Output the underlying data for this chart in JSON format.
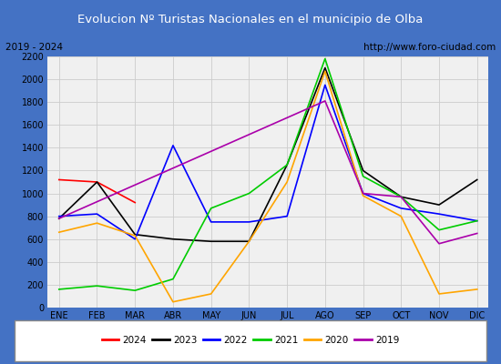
{
  "title": "Evolucion Nº Turistas Nacionales en el municipio de Olba",
  "subtitle_left": "2019 - 2024",
  "subtitle_right": "http://www.foro-ciudad.com",
  "title_bg_color": "#4472c4",
  "title_text_color": "#ffffff",
  "subtitle_bg_color": "#f0f0f0",
  "subtitle_text_color": "#000000",
  "plot_bg_color": "#f0f0f0",
  "border_color": "#4472c4",
  "months": [
    "ENE",
    "FEB",
    "MAR",
    "ABR",
    "MAY",
    "JUN",
    "JUL",
    "AGO",
    "SEP",
    "OCT",
    "NOV",
    "DIC"
  ],
  "ylim": [
    0,
    2200
  ],
  "yticks": [
    0,
    200,
    400,
    600,
    800,
    1000,
    1200,
    1400,
    1600,
    1800,
    2000,
    2200
  ],
  "series": {
    "2024": {
      "color": "#ff0000",
      "values": [
        1120,
        1100,
        920,
        null,
        null,
        null,
        null,
        null,
        null,
        null,
        null,
        null
      ]
    },
    "2023": {
      "color": "#000000",
      "values": [
        780,
        1100,
        640,
        600,
        580,
        580,
        1250,
        2100,
        1200,
        970,
        900,
        1120
      ]
    },
    "2022": {
      "color": "#0000ff",
      "values": [
        800,
        820,
        600,
        1420,
        750,
        750,
        800,
        1950,
        1000,
        870,
        820,
        760
      ]
    },
    "2021": {
      "color": "#00cc00",
      "values": [
        160,
        190,
        150,
        250,
        870,
        1000,
        1250,
        2180,
        1150,
        970,
        680,
        760
      ]
    },
    "2020": {
      "color": "#ffa500",
      "values": [
        660,
        740,
        630,
        50,
        120,
        580,
        1100,
        2070,
        980,
        800,
        120,
        160
      ]
    },
    "2019": {
      "color": "#aa00aa",
      "values": [
        780,
        null,
        null,
        null,
        null,
        null,
        null,
        1810,
        1000,
        970,
        560,
        650
      ]
    }
  },
  "legend_order": [
    "2024",
    "2023",
    "2022",
    "2021",
    "2020",
    "2019"
  ]
}
